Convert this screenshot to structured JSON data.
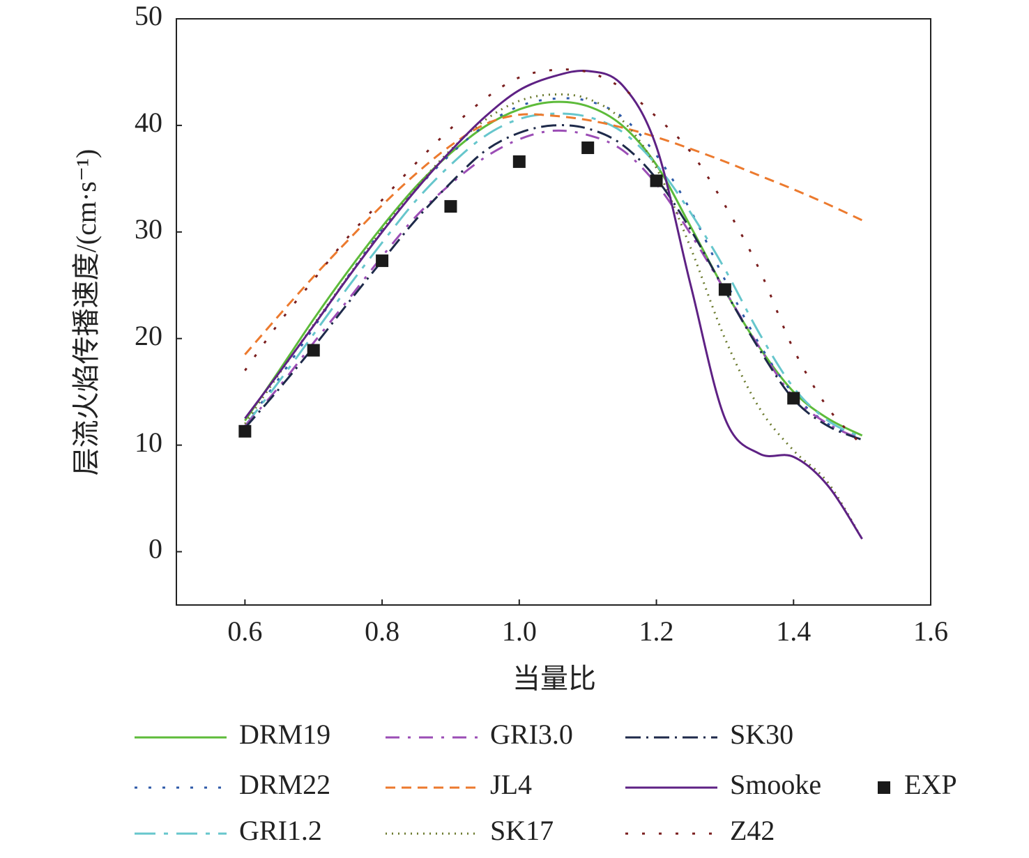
{
  "chart_data": {
    "type": "line",
    "x_label": "当量比",
    "y_label": "层流火焰传播速度/(cm·s⁻¹)",
    "xlim": [
      0.5,
      1.6
    ],
    "ylim": [
      -5,
      50
    ],
    "xticks": [
      0.6,
      0.8,
      {
        "value": 1,
        "label": "1.0"
      },
      1.2,
      1.4,
      1.6
    ],
    "yticks": [
      0,
      10,
      20,
      30,
      40,
      50
    ],
    "x": [
      0.6,
      0.65,
      0.7,
      0.75,
      0.8,
      0.85,
      0.9,
      0.95,
      1.0,
      1.05,
      1.1,
      1.15,
      1.2,
      1.25,
      1.3,
      1.35,
      1.4,
      1.45,
      1.5
    ],
    "series": [
      {
        "name": "DRM19",
        "color": "#5dbb3a",
        "dash": "none",
        "values": [
          12.3,
          17,
          21.8,
          26.3,
          30.5,
          34.3,
          37.4,
          39.9,
          41.5,
          42.2,
          41.8,
          40.0,
          36.3,
          30.5,
          24.5,
          19.2,
          15.0,
          12.5,
          10.9
        ]
      },
      {
        "name": "DRM22",
        "color": "#2e5aa8",
        "dash": "4 16",
        "values": [
          11.8,
          16.3,
          21,
          25.8,
          30.2,
          34,
          37.3,
          40,
          41.8,
          42.5,
          42.3,
          40.8,
          37.2,
          32,
          25.5,
          19.5,
          14.8,
          12,
          10.6
        ]
      },
      {
        "name": "GRI1.2",
        "color": "#66c6cc",
        "dash": "30 12 6 12",
        "values": [
          11.8,
          16,
          20.4,
          24.8,
          29,
          33,
          36.3,
          39,
          40.6,
          41.1,
          40.8,
          39.4,
          36.3,
          31.8,
          26.5,
          20.5,
          15.4,
          12.3,
          10.7
        ]
      },
      {
        "name": "GRI3.0",
        "color": "#9b4db5",
        "dash": "20 12 4 12",
        "values": [
          11.8,
          15.5,
          19.6,
          23.6,
          27.7,
          31.5,
          34.5,
          37,
          38.7,
          39.5,
          39.1,
          37.7,
          34.5,
          29.8,
          24.5,
          19.2,
          14.5,
          12,
          10.5
        ]
      },
      {
        "name": "JL4",
        "color": "#ec7a2e",
        "dash": "14 9",
        "values": [
          18.5,
          22.2,
          25.8,
          29.2,
          32.5,
          35.5,
          38.1,
          40.1,
          41,
          40.9,
          40.5,
          39.8,
          38.9,
          37.8,
          36.6,
          35.3,
          34,
          32.6,
          31.1
        ]
      },
      {
        "name": "SK17",
        "color": "#6b7a2e",
        "dash": "2 7",
        "values": [
          12,
          16.7,
          21.3,
          25.8,
          30.2,
          34.2,
          37.7,
          40.5,
          42.3,
          42.9,
          42.5,
          40.5,
          36,
          28.5,
          20,
          13.5,
          9.5,
          6.5,
          1.2
        ]
      },
      {
        "name": "SK30",
        "color": "#1e2a4a",
        "dash": "22 8 3 8",
        "values": [
          11.6,
          15.3,
          19.2,
          23.3,
          27.3,
          31.2,
          34.6,
          37.6,
          39.3,
          40,
          39.7,
          38.2,
          35,
          30.2,
          24.5,
          19,
          14.3,
          11.8,
          10.5
        ]
      },
      {
        "name": "Smooke",
        "color": "#5e2184",
        "dash": "none",
        "values": [
          12.5,
          16.8,
          21.2,
          25.7,
          30,
          34,
          37.6,
          40.8,
          43.3,
          44.6,
          45.1,
          43.8,
          38,
          25,
          12.5,
          9.2,
          8.9,
          6.2,
          1.2
        ]
      },
      {
        "name": "Z42",
        "color": "#7a1e1e",
        "dash": "4 20",
        "values": [
          17,
          21.5,
          25.5,
          29.5,
          33,
          36.5,
          39.7,
          42.5,
          44.5,
          45.2,
          45,
          43.5,
          40.8,
          37.5,
          32.5,
          26.5,
          19,
          13.5,
          10
        ]
      }
    ],
    "points": {
      "name": "EXP",
      "color": "#1a1a1a",
      "marker": "square",
      "x": [
        0.6,
        0.7,
        0.8,
        0.9,
        1.0,
        1.1,
        1.2,
        1.3,
        1.4
      ],
      "values": [
        11.3,
        18.9,
        27.3,
        32.4,
        36.6,
        37.9,
        34.8,
        24.6,
        14.4
      ]
    }
  }
}
